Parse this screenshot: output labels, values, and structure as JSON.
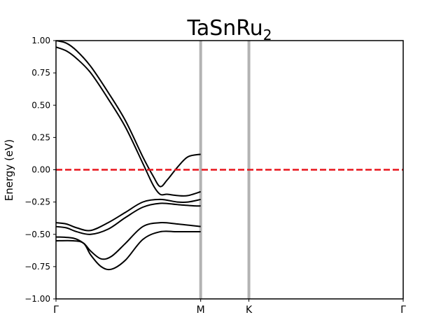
{
  "chart_data": {
    "type": "line",
    "title": "TaSnRu",
    "title_subscript": "2",
    "xlabel": "",
    "ylabel": "Energy (eV)",
    "xlim": [
      0,
      1
    ],
    "ylim": [
      -1.0,
      1.0
    ],
    "yticks": [
      -1.0,
      -0.75,
      -0.5,
      -0.25,
      0.0,
      0.25,
      0.5,
      0.75,
      1.0
    ],
    "ytick_labels": [
      "−1.00",
      "−0.75",
      "−0.50",
      "−0.25",
      "0.00",
      "0.25",
      "0.50",
      "0.75",
      "1.00"
    ],
    "kpoints": [
      {
        "label": "Γ",
        "x": 0.0
      },
      {
        "label": "M",
        "x": 0.4167
      },
      {
        "label": "K",
        "x": 0.5556
      },
      {
        "label": "Γ",
        "x": 1.0
      }
    ],
    "vlines": [
      0.4167,
      0.5556
    ],
    "fermi_level": 0.0,
    "colors": {
      "bands": "#000000",
      "fermi": "#e8141c",
      "vlines": "#b3b3b3"
    },
    "series": [
      {
        "x": [
          0.0,
          0.03,
          0.06,
          0.1,
          0.15,
          0.2,
          0.25,
          0.28,
          0.3,
          0.32,
          0.35,
          0.38,
          0.4167
        ],
        "y": [
          1.0,
          0.98,
          0.92,
          0.8,
          0.6,
          0.38,
          0.1,
          -0.05,
          -0.13,
          -0.08,
          0.02,
          0.1,
          0.12
        ]
      },
      {
        "x": [
          0.0,
          0.03,
          0.06,
          0.1,
          0.15,
          0.2,
          0.25,
          0.28,
          0.3,
          0.32,
          0.35,
          0.38,
          0.4167
        ],
        "y": [
          0.95,
          0.92,
          0.86,
          0.75,
          0.55,
          0.33,
          0.05,
          -0.12,
          -0.19,
          -0.19,
          -0.2,
          -0.2,
          -0.17
        ]
      },
      {
        "x": [
          0.0,
          0.03,
          0.06,
          0.1,
          0.15,
          0.2,
          0.25,
          0.3,
          0.35,
          0.38,
          0.4167
        ],
        "y": [
          -0.41,
          -0.42,
          -0.45,
          -0.47,
          -0.41,
          -0.33,
          -0.25,
          -0.23,
          -0.25,
          -0.25,
          -0.23
        ]
      },
      {
        "x": [
          0.0,
          0.03,
          0.06,
          0.1,
          0.15,
          0.2,
          0.25,
          0.3,
          0.35,
          0.4,
          0.4167
        ],
        "y": [
          -0.44,
          -0.45,
          -0.48,
          -0.5,
          -0.46,
          -0.37,
          -0.29,
          -0.26,
          -0.27,
          -0.28,
          -0.28
        ]
      },
      {
        "x": [
          0.0,
          0.05,
          0.08,
          0.1,
          0.13,
          0.16,
          0.2,
          0.25,
          0.3,
          0.35,
          0.4167
        ],
        "y": [
          -0.52,
          -0.53,
          -0.57,
          -0.63,
          -0.69,
          -0.67,
          -0.57,
          -0.44,
          -0.41,
          -0.42,
          -0.44
        ]
      },
      {
        "x": [
          0.0,
          0.05,
          0.08,
          0.1,
          0.13,
          0.16,
          0.2,
          0.25,
          0.3,
          0.35,
          0.4167
        ],
        "y": [
          -0.55,
          -0.55,
          -0.57,
          -0.66,
          -0.75,
          -0.77,
          -0.7,
          -0.54,
          -0.48,
          -0.48,
          -0.48
        ]
      }
    ]
  }
}
